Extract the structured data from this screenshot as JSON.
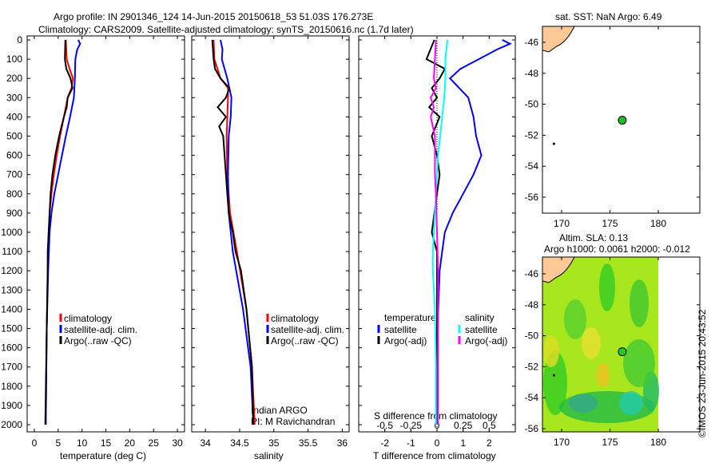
{
  "title": {
    "line1": "Argo profile: IN 2901346_124 14-Jun-2015 20150618_53 51.03S 176.273E",
    "line2": "Climatology: CARS2009. Satellite-adjusted climatology: synTS_20150616.nc (1.7d later)"
  },
  "colors": {
    "climatology": "#ff0000",
    "satellite": "#0000ff",
    "argo": "#000000",
    "sal_satellite": "#00ffff",
    "sal_argo": "#ff00ff",
    "land": "#ffc896"
  },
  "chart_data": [
    {
      "type": "line",
      "name": "temperature",
      "xlabel": "temperature (deg C)",
      "xlim": [
        -1.5,
        31.5
      ],
      "ylim": [
        0,
        2060
      ],
      "xticks": [
        0,
        5,
        10,
        15,
        20,
        25,
        30
      ],
      "yticks": [
        0,
        100,
        200,
        300,
        400,
        500,
        600,
        700,
        800,
        900,
        1000,
        1100,
        1200,
        1300,
        1400,
        1500,
        1600,
        1700,
        1800,
        1900,
        2000
      ],
      "legend": [
        "climatology",
        "satellite-adj. clim.",
        "Argo(..raw -QC)"
      ],
      "series": [
        {
          "name": "climatology",
          "color": "#ff0000",
          "depth": [
            0,
            100,
            150,
            200,
            250,
            300,
            400,
            500,
            600,
            700,
            800,
            900,
            1000,
            1200,
            1500,
            2000
          ],
          "values": [
            6.6,
            6.8,
            7.4,
            8.1,
            7.8,
            7.0,
            6.2,
            5.4,
            4.7,
            4.1,
            3.6,
            3.2,
            3.0,
            2.8,
            2.6,
            2.4
          ]
        },
        {
          "name": "satellite-adj. clim.",
          "color": "#0000ff",
          "depth": [
            0,
            20,
            50,
            100,
            200,
            300,
            400,
            500,
            600,
            700,
            800,
            900,
            1000,
            1200,
            1500,
            2000
          ],
          "values": [
            9.2,
            9.6,
            9.0,
            8.6,
            8.5,
            8.3,
            7.5,
            6.6,
            5.8,
            5.0,
            4.2,
            3.6,
            3.2,
            2.9,
            2.6,
            2.4
          ]
        },
        {
          "name": "Argo",
          "color": "#000000",
          "depth": [
            0,
            100,
            150,
            200,
            250,
            300,
            350,
            400,
            500,
            600,
            700,
            800,
            900,
            1000,
            1100,
            1200,
            1500,
            2000
          ],
          "values": [
            6.5,
            6.4,
            6.7,
            7.6,
            8.0,
            7.0,
            6.8,
            6.2,
            5.2,
            4.4,
            3.8,
            3.4,
            3.2,
            3.0,
            2.8,
            2.8,
            2.6,
            2.3
          ]
        }
      ]
    },
    {
      "type": "line",
      "name": "salinity",
      "xlabel": "salinity",
      "xlim": [
        33.8,
        36.1
      ],
      "ylim": [
        0,
        2060
      ],
      "xticks": [
        34,
        34.5,
        35,
        35.5,
        36
      ],
      "legend": [
        "climatology",
        "satellite-adj. clim.",
        "Argo(..raw -QC)"
      ],
      "annotation": [
        "Indian ARGO",
        "PI: M Ravichandran"
      ],
      "series": [
        {
          "name": "climatology",
          "color": "#ff0000",
          "depth": [
            0,
            100,
            200,
            250,
            300,
            400,
            500,
            700,
            900,
            1100,
            1400,
            1700,
            2000
          ],
          "values": [
            34.12,
            34.13,
            34.22,
            34.33,
            34.33,
            34.32,
            34.31,
            34.32,
            34.36,
            34.46,
            34.6,
            34.68,
            34.72
          ]
        },
        {
          "name": "satellite-adj. clim.",
          "color": "#0000ff",
          "depth": [
            0,
            50,
            100,
            200,
            300,
            400,
            500,
            700,
            900,
            1100,
            1400,
            1700,
            2000
          ],
          "values": [
            34.22,
            34.25,
            34.24,
            34.32,
            34.38,
            34.37,
            34.34,
            34.33,
            34.34,
            34.4,
            34.55,
            34.66,
            34.7
          ]
        },
        {
          "name": "Argo",
          "color": "#000000",
          "depth": [
            0,
            100,
            150,
            200,
            250,
            300,
            350,
            400,
            450,
            500,
            600,
            700,
            800,
            900,
            1000,
            1100,
            1200,
            1400,
            1700,
            2000
          ],
          "values": [
            34.1,
            34.12,
            34.14,
            34.22,
            34.35,
            34.3,
            34.18,
            34.3,
            34.2,
            34.26,
            34.28,
            34.3,
            34.32,
            34.34,
            34.4,
            34.44,
            34.52,
            34.6,
            34.68,
            34.7
          ]
        }
      ]
    },
    {
      "type": "line",
      "name": "difference",
      "xlabel": "T difference from climatology",
      "xlabel2": "S difference from climatology",
      "xlim": [
        -3,
        3
      ],
      "xticks": [
        -2,
        -1,
        0,
        1,
        2
      ],
      "xticks2": [
        -0.5,
        -0.25,
        0,
        0.25,
        0.5
      ],
      "ylim": [
        0,
        2060
      ],
      "legend_titles": [
        "temperature",
        "salinity"
      ],
      "legend": [
        "satellite",
        "Argo(-adj)",
        "satellite",
        "Argo(-adj)"
      ],
      "series": [
        {
          "name": "T satellite",
          "color": "#0000ff",
          "depth": [
            0,
            20,
            50,
            100,
            150,
            200,
            300,
            400,
            500,
            600,
            700,
            800,
            900,
            1000,
            1100,
            1200,
            1400,
            1700,
            2000
          ],
          "values": [
            2.5,
            2.8,
            2.3,
            1.6,
            0.9,
            0.5,
            1.2,
            1.4,
            1.5,
            1.7,
            1.4,
            1.0,
            0.6,
            0.3,
            0.2,
            0.1,
            0.05,
            0.0,
            0.0
          ]
        },
        {
          "name": "T Argo",
          "color": "#000000",
          "depth": [
            0,
            100,
            150,
            200,
            250,
            300,
            350,
            400,
            500,
            600,
            700,
            800,
            1000,
            1100,
            1200,
            1500,
            2000
          ],
          "values": [
            -0.1,
            -0.4,
            0.3,
            0.1,
            -0.2,
            0.0,
            -0.3,
            0.1,
            -0.2,
            0.0,
            0.1,
            0.0,
            -0.2,
            0.0,
            0.0,
            0.0,
            0.0
          ]
        },
        {
          "name": "S satellite",
          "color": "#00ffff",
          "depth": [
            0,
            100,
            200,
            300,
            400,
            500,
            600,
            700,
            800,
            900,
            1000,
            1100,
            1200,
            1400,
            1700,
            2000
          ],
          "values": [
            0.1,
            0.08,
            0.08,
            0.07,
            0.05,
            0.03,
            0.01,
            0.0,
            -0.01,
            -0.02,
            -0.03,
            -0.04,
            -0.04,
            -0.02,
            -0.01,
            -0.01
          ]
        },
        {
          "name": "S Argo",
          "color": "#ff00ff",
          "depth": [
            0,
            100,
            200,
            250,
            300,
            350,
            400,
            500,
            600,
            700,
            800,
            1000,
            1200,
            1500,
            2000
          ],
          "values": [
            -0.01,
            -0.02,
            -0.03,
            -0.01,
            -0.06,
            -0.03,
            -0.06,
            -0.02,
            -0.02,
            -0.02,
            -0.01,
            0.0,
            0.01,
            0.01,
            0.01
          ]
        }
      ]
    },
    {
      "type": "map",
      "name": "sst-map",
      "title": "sat. SST: NaN Argo: 6.49",
      "xlim": [
        168,
        184.3
      ],
      "ylim": [
        -57.1,
        -45
      ],
      "xticks": [
        170,
        175,
        180
      ],
      "yticks": [
        -46,
        -48,
        -50,
        -52,
        -54,
        -56
      ],
      "point": {
        "lon": 176.273,
        "lat": -51.03
      }
    },
    {
      "type": "map",
      "name": "sla-map",
      "title": "Altim. SLA: 0.13",
      "subtitle": "Argo h1000: 0.0061 h2000: -0.012",
      "xlim": [
        168,
        184.3
      ],
      "ylim": [
        -57.1,
        -45
      ],
      "xticks": [
        170,
        175,
        180
      ],
      "yticks": [
        -46,
        -48,
        -50,
        -52,
        -54,
        -56
      ],
      "point": {
        "lon": 176.273,
        "lat": -51.03
      }
    }
  ],
  "credit": "©IMOS 23-Jun-2015 20:43:52"
}
